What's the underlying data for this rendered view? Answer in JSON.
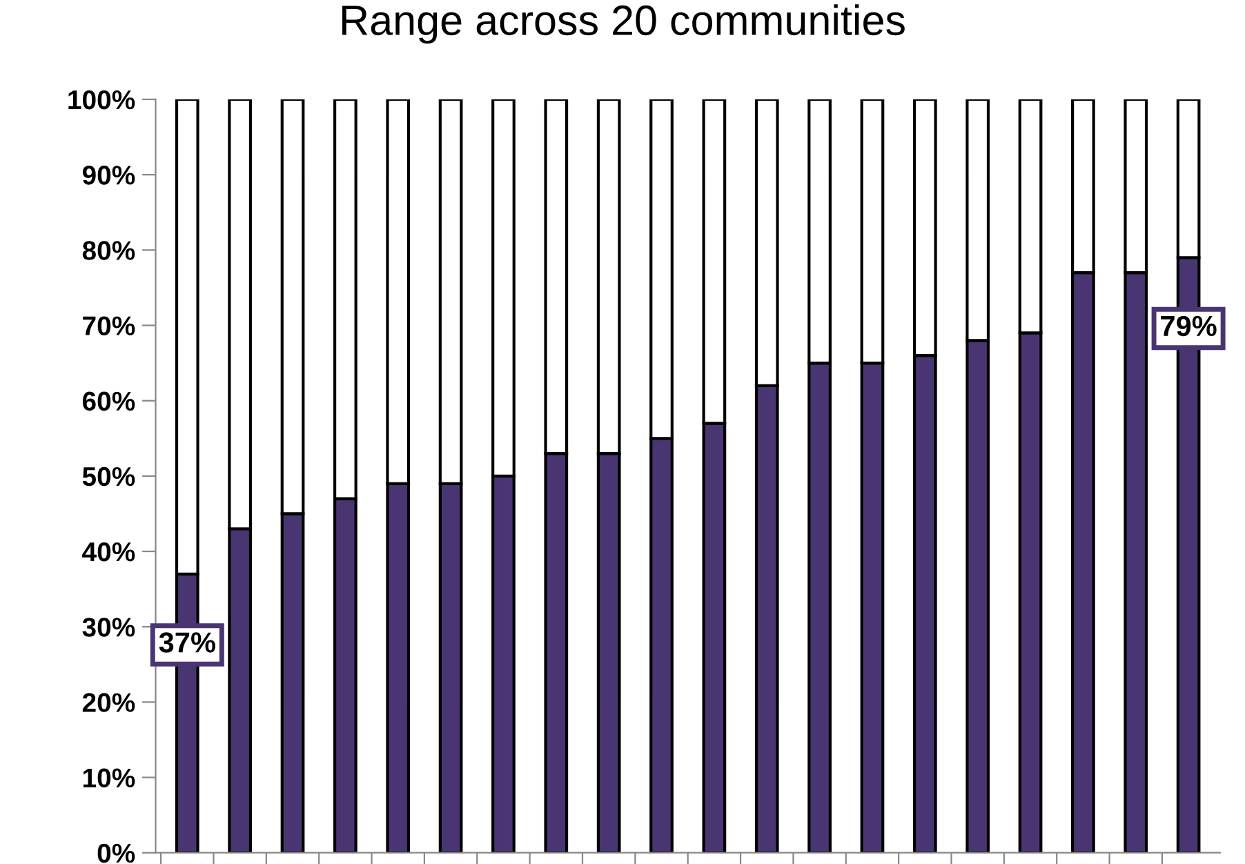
{
  "chart_data": {
    "type": "bar",
    "title": "Range across 20 communities",
    "stacked": true,
    "categories": [
      null,
      null,
      null,
      null,
      null,
      null,
      null,
      null,
      null,
      null,
      null,
      null,
      null,
      null,
      null,
      null,
      null,
      null,
      null,
      null
    ],
    "series": [
      {
        "color": "#4a3573",
        "values": [
          37,
          43,
          45,
          47,
          49,
          49,
          50,
          53,
          53,
          55,
          57,
          62,
          65,
          65,
          66,
          68,
          69,
          77,
          77,
          79
        ],
        "value_labels": [
          "37%",
          null,
          null,
          null,
          null,
          null,
          null,
          null,
          null,
          null,
          null,
          null,
          null,
          null,
          null,
          null,
          null,
          null,
          null,
          "79%"
        ]
      },
      {
        "color": "#ffffff",
        "values": [
          63,
          57,
          55,
          53,
          51,
          51,
          50,
          47,
          47,
          45,
          43,
          38,
          35,
          35,
          34,
          32,
          31,
          23,
          23,
          21
        ]
      }
    ],
    "ylim": [
      0,
      100
    ],
    "yticks": [
      {
        "value": 0,
        "label": "0%"
      },
      {
        "value": 10,
        "label": "10%"
      },
      {
        "value": 20,
        "label": "20%"
      },
      {
        "value": 30,
        "label": "30%"
      },
      {
        "value": 40,
        "label": "40%"
      },
      {
        "value": 50,
        "label": "50%"
      },
      {
        "value": 60,
        "label": "60%"
      },
      {
        "value": 70,
        "label": "70%"
      },
      {
        "value": 80,
        "label": "80%"
      },
      {
        "value": 90,
        "label": "90%"
      },
      {
        "value": 100,
        "label": "100%"
      }
    ],
    "grid": false,
    "legend": false
  }
}
